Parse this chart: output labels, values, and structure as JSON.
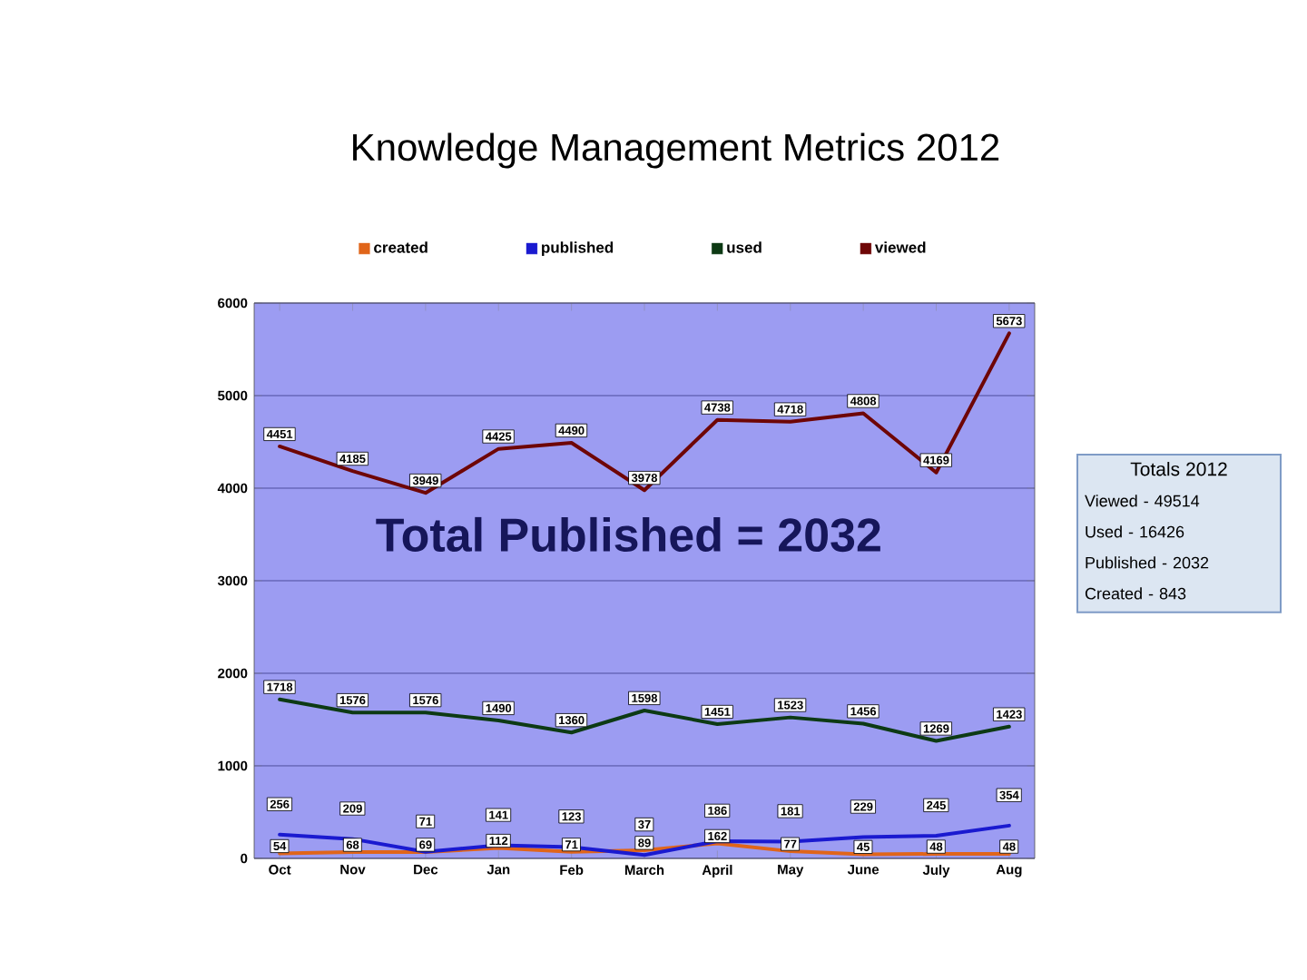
{
  "chart_data": {
    "type": "line",
    "title": "Knowledge Management Metrics 2012",
    "categories": [
      "Oct",
      "Nov",
      "Dec",
      "Jan",
      "Feb",
      "March",
      "April",
      "May",
      "June",
      "July",
      "Aug"
    ],
    "series": [
      {
        "name": "created",
        "color": "#e0651a",
        "values": [
          54,
          68,
          69,
          112,
          71,
          89,
          162,
          77,
          45,
          48,
          48
        ]
      },
      {
        "name": "published",
        "color": "#1a1ad0",
        "values": [
          256,
          209,
          71,
          141,
          123,
          37,
          186,
          181,
          229,
          245,
          354
        ]
      },
      {
        "name": "used",
        "color": "#0d3a14",
        "values": [
          1718,
          1576,
          1576,
          1490,
          1360,
          1598,
          1451,
          1523,
          1456,
          1269,
          1423
        ]
      },
      {
        "name": "viewed",
        "color": "#6e0606",
        "values": [
          4451,
          4185,
          3949,
          4425,
          4490,
          3978,
          4738,
          4718,
          4808,
          4169,
          5673
        ]
      }
    ],
    "ylim": [
      0,
      6000
    ],
    "yticks": [
      0,
      1000,
      2000,
      3000,
      4000,
      5000,
      6000
    ],
    "grid": "y",
    "legend": "top",
    "data_labels": true,
    "annotations": [
      "Total Published = 2032",
      "Totals 2012",
      "Viewed - 49514",
      "Used - 16426",
      "Published - 2032",
      "Created - 843"
    ]
  }
}
